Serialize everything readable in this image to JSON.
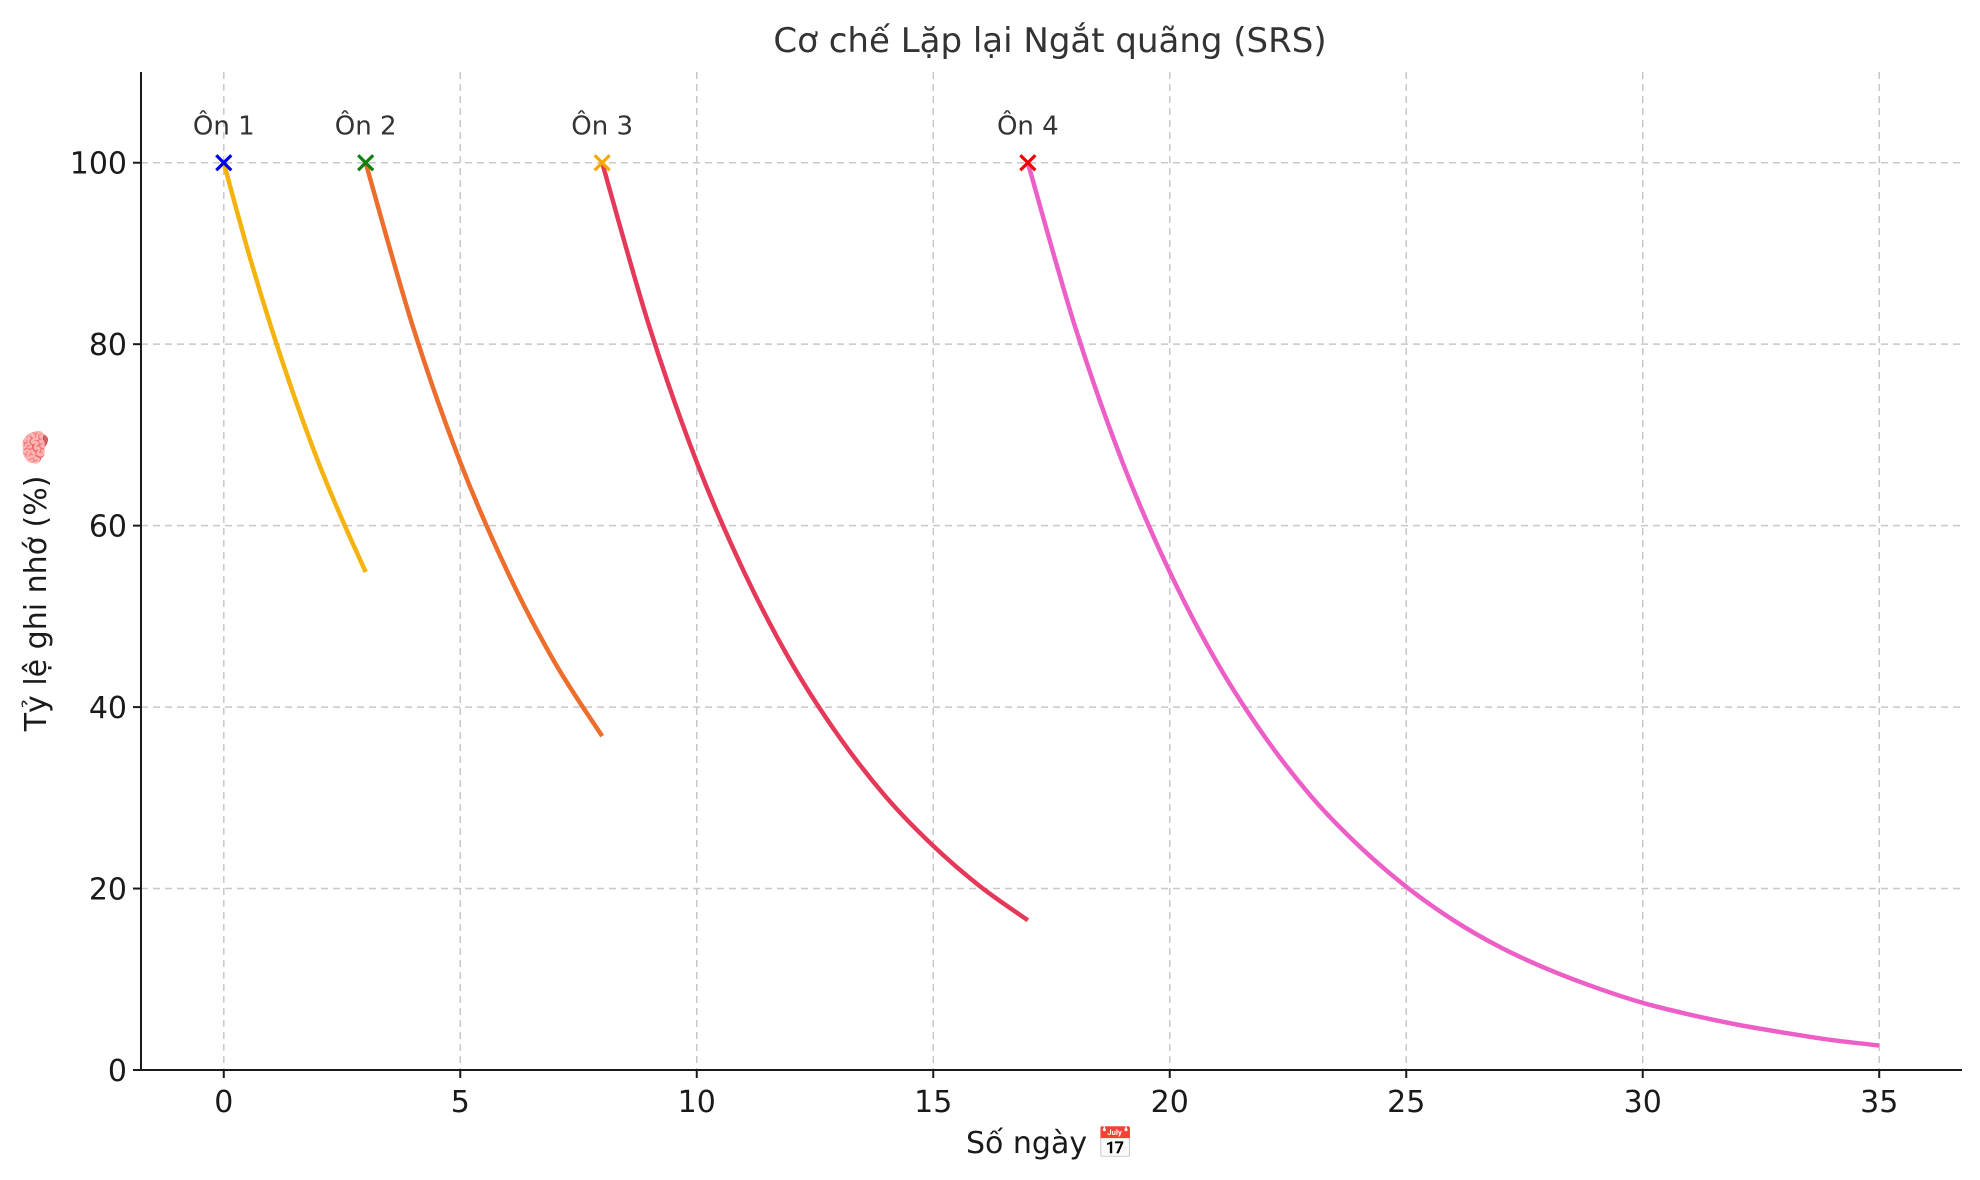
{
  "chart_data": {
    "type": "line",
    "title": "Cơ chế Lặp lại Ngắt quãng (SRS)",
    "xlabel": "Số ngày 📅",
    "ylabel": "Tỷ lệ ghi nhớ (%) 🧠",
    "xlim": [
      -1.75,
      36.75
    ],
    "ylim": [
      0,
      110
    ],
    "x_ticks": [
      0,
      5,
      10,
      15,
      20,
      25,
      30,
      35
    ],
    "y_ticks": [
      0,
      20,
      40,
      60,
      80,
      100
    ],
    "grid": true,
    "legend": "none",
    "series": [
      {
        "color": "#f5b30f",
        "x": [
          0,
          0.5,
          1,
          1.5,
          2,
          2.5,
          3
        ],
        "y": [
          100,
          90.5,
          81.9,
          74.1,
          67.0,
          60.7,
          54.9
        ]
      },
      {
        "color": "#ec6d2c",
        "x": [
          3,
          4,
          5,
          6,
          7,
          8
        ],
        "y": [
          100,
          81.9,
          67.0,
          54.9,
          44.9,
          36.8
        ]
      },
      {
        "color": "#e5395a",
        "x": [
          8,
          9,
          10,
          11,
          12,
          13,
          14,
          15,
          16,
          17
        ],
        "y": [
          100,
          81.9,
          67.0,
          54.9,
          44.9,
          36.8,
          30.1,
          24.7,
          20.2,
          16.5
        ]
      },
      {
        "color": "#ec5fc7",
        "x": [
          17,
          18,
          19,
          20,
          21,
          22,
          23,
          24,
          25,
          26,
          27,
          28,
          29,
          30,
          31,
          32,
          33,
          34,
          35
        ],
        "y": [
          100,
          81.9,
          67.0,
          54.9,
          44.9,
          36.8,
          30.1,
          24.7,
          20.2,
          16.5,
          13.5,
          11.1,
          9.1,
          7.4,
          6.1,
          5.0,
          4.1,
          3.3,
          2.7
        ]
      }
    ],
    "markers": [
      {
        "x": 0,
        "y": 100,
        "label": "Ôn 1",
        "color": "#0000ee"
      },
      {
        "x": 3,
        "y": 100,
        "label": "Ôn 2",
        "color": "#108010"
      },
      {
        "x": 8,
        "y": 100,
        "label": "Ôn 3",
        "color": "#f5a800"
      },
      {
        "x": 17,
        "y": 100,
        "label": "Ôn 4",
        "color": "#ee0000"
      }
    ]
  }
}
